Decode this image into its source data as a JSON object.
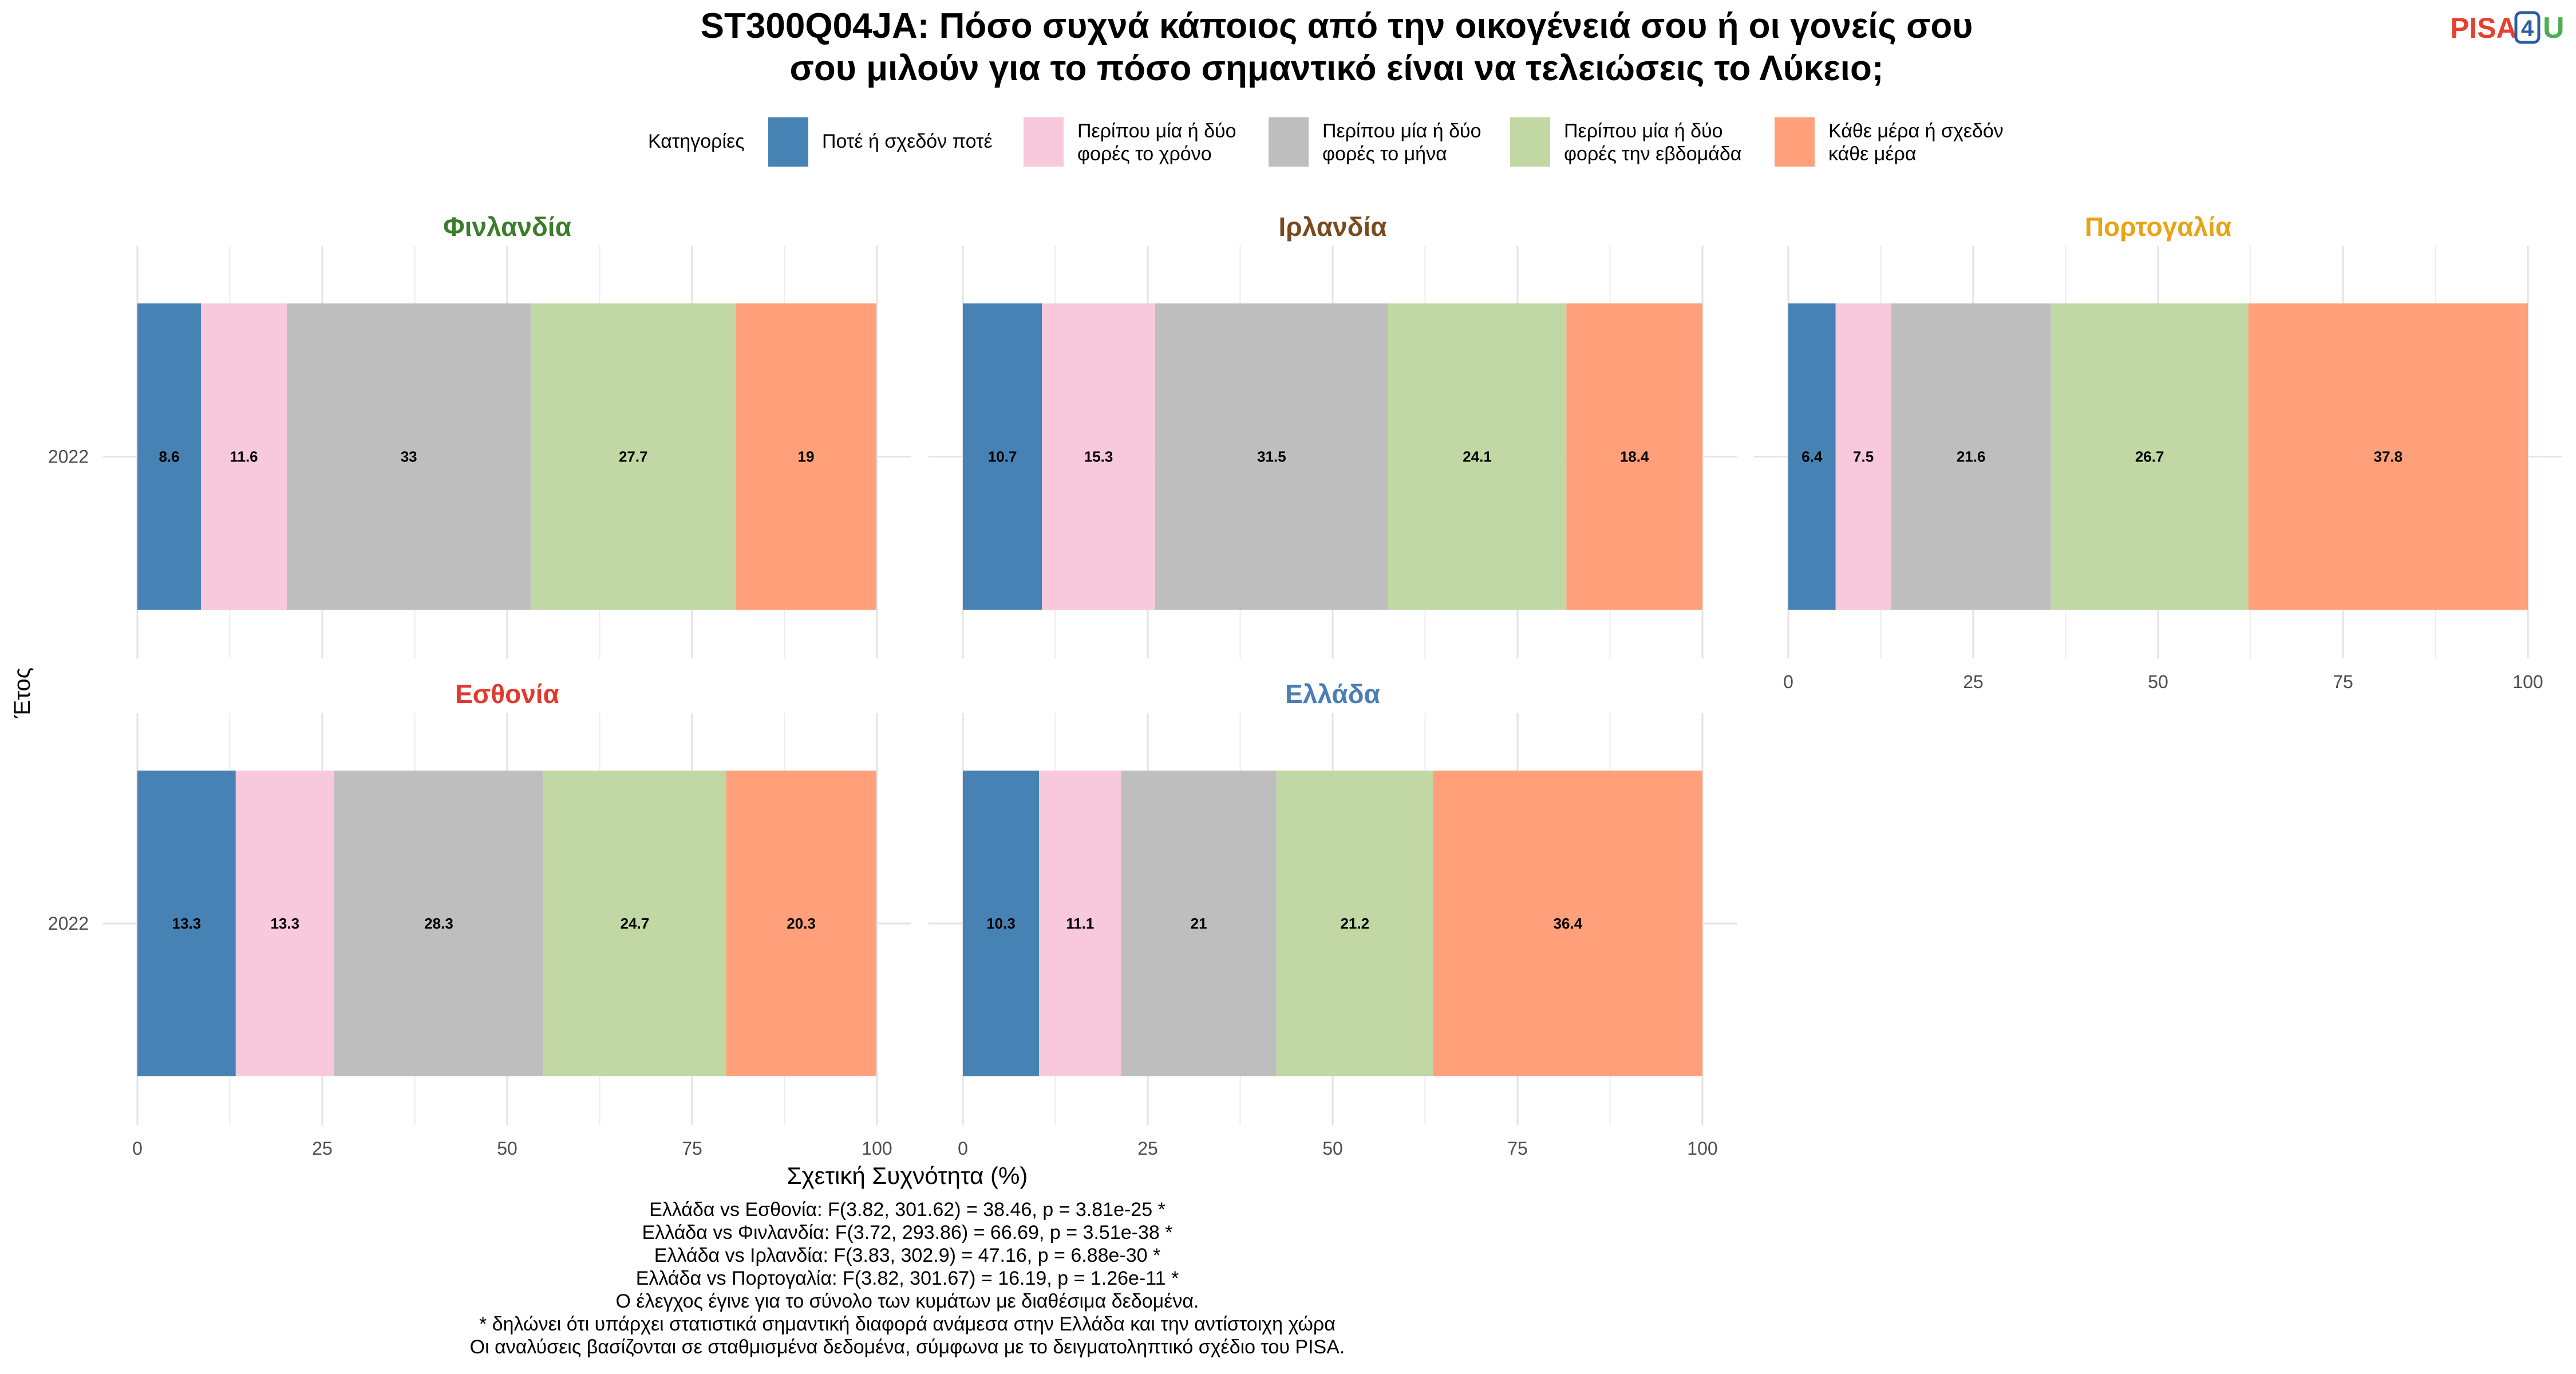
{
  "title_lines": [
    "ST300Q04JA: Πόσο συχνά κάποιος από την οικογένειά σου ή οι γονείς σου",
    "σου μιλούν για το πόσο σημαντικό είναι να τελειώσεις το Λύκειο;"
  ],
  "logo": {
    "text_pisa": "PISA",
    "text_digit": "4",
    "text_u": "U",
    "color_pisa": "#e8402e",
    "color_digit": "#2a5f9e",
    "color_u": "#4caf50"
  },
  "legend_title": "Κατηγορίες",
  "categories": [
    {
      "lines": [
        "Ποτέ ή σχεδόν ποτέ"
      ],
      "color": "#4682b4"
    },
    {
      "lines": [
        "Περίπου μία ή δύο",
        "φορές το χρόνο"
      ],
      "color": "#f8c8dc"
    },
    {
      "lines": [
        "Περίπου μία ή δύο",
        "φορές το μήνα"
      ],
      "color": "#bebebe"
    },
    {
      "lines": [
        "Περίπου μία ή δύο",
        "φορές την εβδομάδα"
      ],
      "color": "#c1d8a4"
    },
    {
      "lines": [
        "Κάθε μέρα ή σχεδόν",
        "κάθε μέρα"
      ],
      "color": "#ffa07a"
    }
  ],
  "y_axis_title": "Έτος",
  "x_axis_title": "Σχετική Συχνότητα (%)",
  "x_ticks": [
    "0",
    "25",
    "50",
    "75",
    "100"
  ],
  "chart_data": {
    "type": "bar",
    "orientation": "horizontal-stacked",
    "xlim": [
      0,
      100
    ],
    "panels": [
      {
        "name": "Φινλανδία",
        "color": "#3a7d2c",
        "year": "2022",
        "values": [
          8.6,
          11.6,
          33,
          27.7,
          19
        ],
        "labels": [
          "8.6",
          "11.6",
          "33",
          "27.7",
          "19"
        ]
      },
      {
        "name": "Ιρλανδία",
        "color": "#7a4a1e",
        "year": "2022",
        "values": [
          10.7,
          15.3,
          31.5,
          24.1,
          18.4
        ],
        "labels": [
          "10.7",
          "15.3",
          "31.5",
          "24.1",
          "18.4"
        ]
      },
      {
        "name": "Πορτογαλία",
        "color": "#e8a317",
        "year": "2022",
        "values": [
          6.4,
          7.5,
          21.6,
          26.7,
          37.8
        ],
        "labels": [
          "6.4",
          "7.5",
          "21.6",
          "26.7",
          "37.8"
        ]
      },
      {
        "name": "Εσθονία",
        "color": "#e03a2e",
        "year": "2022",
        "values": [
          13.3,
          13.3,
          28.3,
          24.7,
          20.3
        ],
        "labels": [
          "13.3",
          "13.3",
          "28.3",
          "24.7",
          "20.3"
        ]
      },
      {
        "name": "Ελλάδα",
        "color": "#4a7fb5",
        "year": "2022",
        "values": [
          10.3,
          11.1,
          21,
          21.2,
          36.4
        ],
        "labels": [
          "10.3",
          "11.1",
          "21",
          "21.2",
          "36.4"
        ]
      }
    ]
  },
  "caption_lines": [
    "Ελλάδα vs Εσθονία: F(3.82, 301.62) = 38.46, p = 3.81e-25 *",
    "Ελλάδα vs Φινλανδία: F(3.72, 293.86) = 66.69, p = 3.51e-38 *",
    "Ελλάδα vs Ιρλανδία: F(3.83, 302.9) = 47.16, p = 6.88e-30 *",
    "Ελλάδα vs Πορτογαλία: F(3.82, 301.67) = 16.19, p = 1.26e-11 *",
    "Ο έλεγχος έγινε για το σύνολο των κυμάτων με διαθέσιμα δεδομένα.",
    "* δηλώνει ότι υπάρχει στατιστικά σημαντική διαφορά ανάμεσα στην Ελλάδα και την αντίστοιχη χώρα",
    "Οι αναλύσεις βασίζονται σε σταθμισμένα δεδομένα, σύμφωνα με το δειγματοληπτικό σχέδιο του PISA."
  ]
}
